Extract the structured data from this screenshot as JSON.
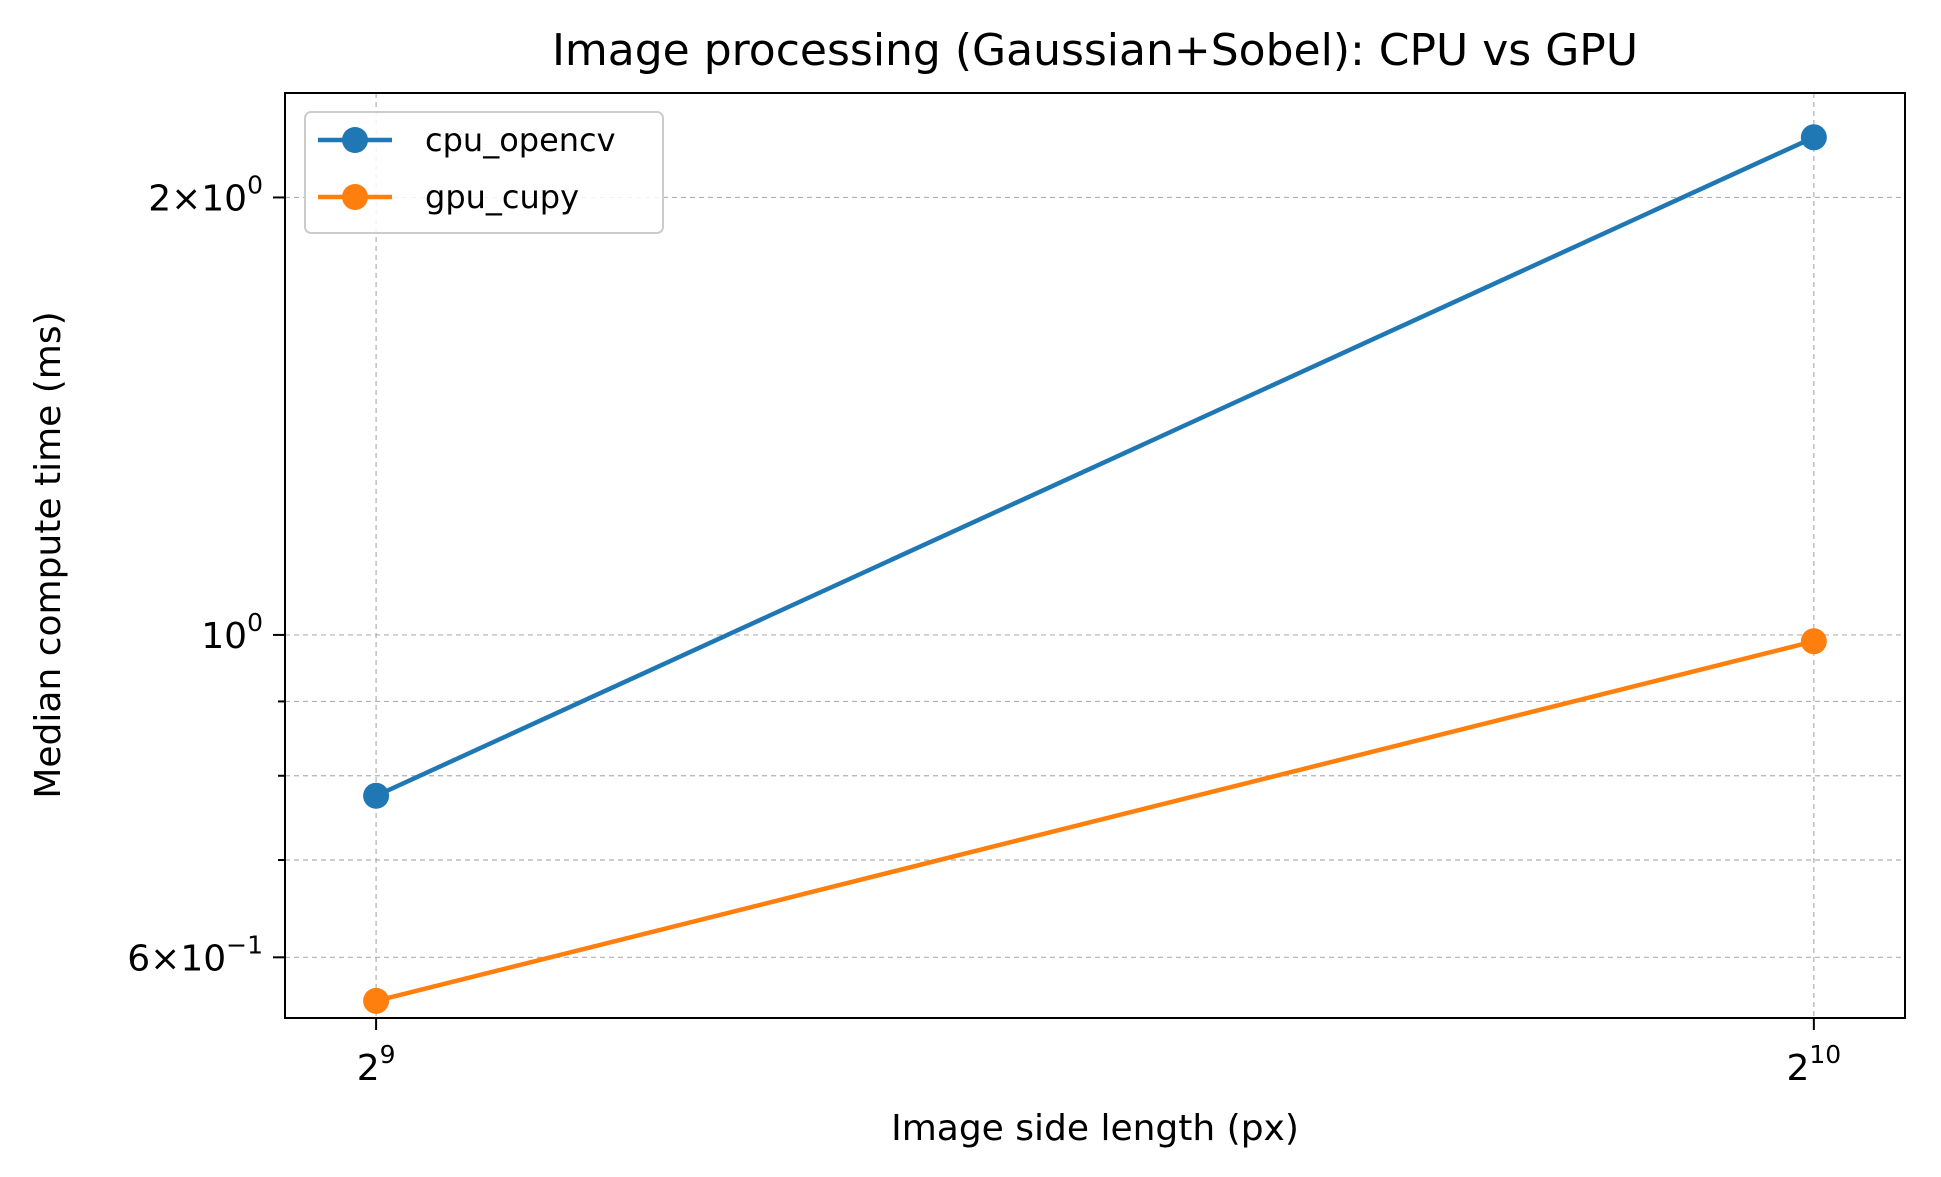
{
  "chart_data": {
    "type": "line",
    "title": "Image processing (Gaussian+Sobel): CPU vs GPU",
    "xlabel": "Image side length (px)",
    "ylabel": "Median compute time (ms)",
    "x_scale": "log2",
    "y_scale": "log10",
    "x": [
      512,
      1024
    ],
    "xlim": [
      490,
      1070
    ],
    "ylim": [
      0.545,
      2.36
    ],
    "x_ticks": [
      {
        "value": 512,
        "base": "2",
        "exp": "9"
      },
      {
        "value": 1024,
        "base": "2",
        "exp": "10"
      }
    ],
    "y_ticks": [
      {
        "value": 2.0,
        "mantissa": "2",
        "exp": "0"
      },
      {
        "value": 1.0,
        "mantissa": "",
        "exp": "0"
      },
      {
        "value": 0.6,
        "mantissa": "6",
        "exp": "−1"
      }
    ],
    "y_minor_ticks": [
      0.7,
      0.8,
      0.9
    ],
    "grid": true,
    "legend_position": "top-left",
    "series": [
      {
        "name": "cpu_opencv",
        "color": "#1f77b4",
        "values": [
          0.775,
          2.2
        ]
      },
      {
        "name": "gpu_cupy",
        "color": "#ff7f0e",
        "values": [
          0.56,
          0.99
        ]
      }
    ]
  }
}
